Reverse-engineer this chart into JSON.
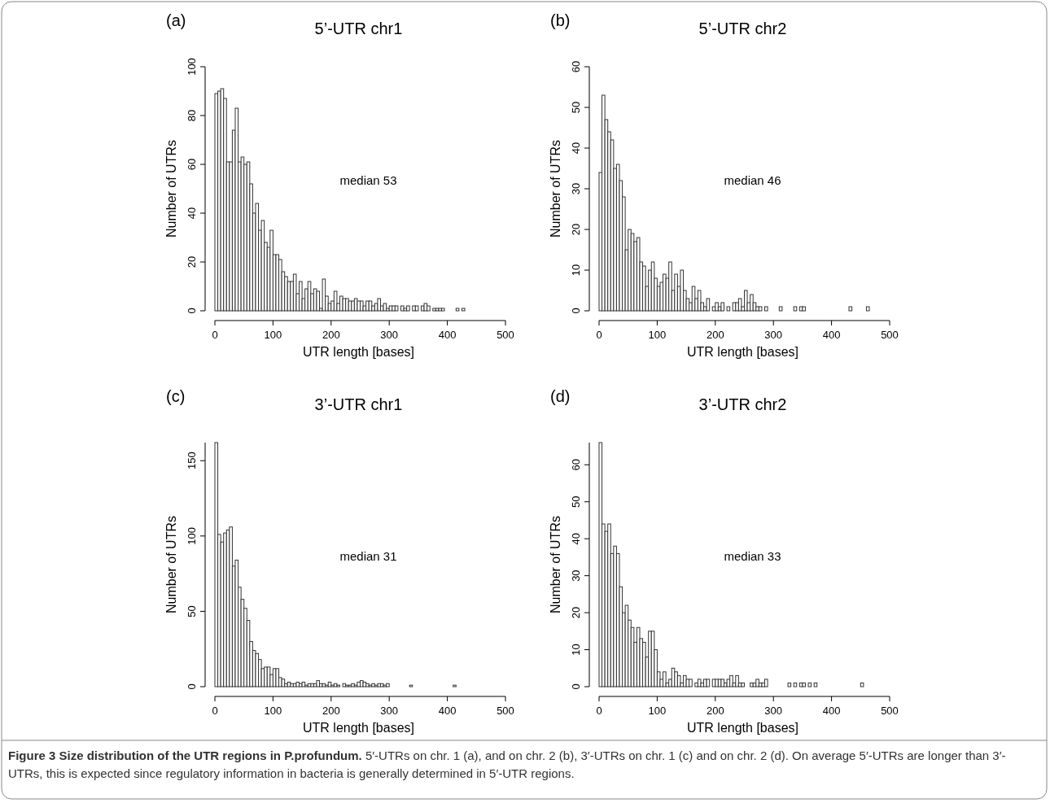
{
  "chart_data": [
    {
      "type": "histogram",
      "title": "5’-UTR chr1",
      "xlabel": "UTR length [bases]",
      "ylabel": "Number of UTRs",
      "color": "#333333",
      "xlim": [
        0,
        500
      ],
      "xticks": [
        0,
        100,
        200,
        300,
        400,
        500
      ],
      "ylim": [
        0,
        100
      ],
      "yticks": [
        0,
        20,
        40,
        60,
        80,
        100
      ],
      "annotations": [
        "(a)",
        "median 53"
      ],
      "bins": [
        0,
        5,
        10,
        15,
        20,
        25,
        30,
        35,
        40,
        45,
        50,
        55,
        60,
        65,
        70,
        75,
        80,
        85,
        90,
        95,
        100,
        105,
        110,
        115,
        120,
        125,
        130,
        135,
        140,
        145,
        150,
        155,
        160,
        165,
        170,
        175,
        180,
        185,
        190,
        195,
        200,
        205,
        210,
        215,
        220,
        225,
        230,
        235,
        240,
        245,
        250,
        255,
        260,
        265,
        270,
        275,
        280,
        285,
        290,
        295,
        300,
        305,
        310,
        315,
        320,
        325,
        330,
        335,
        340,
        345,
        350,
        355,
        360,
        365,
        370,
        375,
        380,
        385,
        390,
        395,
        400,
        405,
        410,
        415,
        420,
        425,
        430
      ],
      "values": [
        89,
        90,
        91,
        87,
        61,
        61,
        74,
        83,
        61,
        63,
        60,
        61,
        52,
        40,
        44,
        33,
        37,
        28,
        26,
        33,
        23,
        23,
        21,
        16,
        14,
        12,
        12,
        15,
        7,
        12,
        5,
        9,
        12,
        7,
        9,
        8,
        1,
        13,
        6,
        3,
        4,
        8,
        3,
        6,
        5,
        5,
        4,
        4,
        5,
        4,
        4,
        2,
        4,
        4,
        2,
        3,
        5,
        2,
        3,
        1,
        2,
        2,
        2,
        0,
        2,
        1,
        2,
        0,
        2,
        2,
        0,
        2,
        3,
        2,
        0,
        1,
        1,
        1,
        1,
        0,
        0,
        0,
        0,
        1,
        0,
        1
      ]
    },
    {
      "type": "histogram",
      "title": "5’-UTR chr2",
      "xlabel": "UTR length [bases]",
      "ylabel": "Number of UTRs",
      "color": "#333333",
      "xlim": [
        0,
        500
      ],
      "xticks": [
        0,
        100,
        200,
        300,
        400,
        500
      ],
      "ylim": [
        0,
        60
      ],
      "yticks": [
        0,
        10,
        20,
        30,
        40,
        50,
        60
      ],
      "annotations": [
        "(b)",
        "median 46"
      ],
      "bins": [
        0,
        5,
        10,
        15,
        20,
        25,
        30,
        35,
        40,
        45,
        50,
        55,
        60,
        65,
        70,
        75,
        80,
        85,
        90,
        95,
        100,
        105,
        110,
        115,
        120,
        125,
        130,
        135,
        140,
        145,
        150,
        155,
        160,
        165,
        170,
        175,
        180,
        185,
        190,
        195,
        200,
        205,
        210,
        215,
        220,
        225,
        230,
        235,
        240,
        245,
        250,
        255,
        260,
        265,
        270,
        275,
        280,
        285,
        290,
        295,
        300,
        305,
        310,
        315,
        320,
        325,
        330,
        335,
        340,
        345,
        350,
        355,
        360,
        365,
        370,
        375,
        380,
        385,
        390,
        395,
        400,
        405,
        410,
        415,
        420,
        425,
        430,
        435,
        440,
        445,
        450,
        455,
        460,
        465
      ],
      "values": [
        34,
        53,
        47,
        44,
        42,
        35,
        36,
        32,
        28,
        15,
        20,
        19,
        17,
        18,
        12,
        11,
        6,
        10,
        12,
        8,
        6,
        7,
        9,
        8,
        12,
        5,
        9,
        6,
        10,
        5,
        3,
        2,
        6,
        3,
        5,
        2,
        1,
        3,
        0,
        1,
        2,
        1,
        2,
        0,
        1,
        0,
        2,
        2,
        3,
        1,
        5,
        2,
        4,
        2,
        1,
        1,
        0,
        1,
        0,
        0,
        0,
        0,
        1,
        0,
        0,
        0,
        0,
        1,
        0,
        1,
        1,
        0,
        0,
        0,
        0,
        0,
        0,
        0,
        0,
        0,
        0,
        0,
        0,
        0,
        0,
        0,
        1,
        0,
        0,
        0,
        0,
        0,
        1
      ]
    },
    {
      "type": "histogram",
      "title": "3’-UTR chr1",
      "xlabel": "UTR length [bases]",
      "ylabel": "Number of UTRs",
      "color": "#333333",
      "xlim": [
        0,
        500
      ],
      "xticks": [
        0,
        100,
        200,
        300,
        400,
        500
      ],
      "ylim": [
        0,
        162
      ],
      "yticks": [
        0,
        50,
        100,
        150
      ],
      "annotations": [
        "(c)",
        "median 31"
      ],
      "bins": [
        0,
        5,
        10,
        15,
        20,
        25,
        30,
        35,
        40,
        45,
        50,
        55,
        60,
        65,
        70,
        75,
        80,
        85,
        90,
        95,
        100,
        105,
        110,
        115,
        120,
        125,
        130,
        135,
        140,
        145,
        150,
        155,
        160,
        165,
        170,
        175,
        180,
        185,
        190,
        195,
        200,
        205,
        210,
        215,
        220,
        225,
        230,
        235,
        240,
        245,
        250,
        255,
        260,
        265,
        270,
        275,
        280,
        285,
        290,
        295,
        300,
        305,
        310,
        315,
        320,
        325,
        330,
        335,
        340,
        345,
        350,
        355,
        360,
        365,
        370,
        375,
        380,
        385,
        390,
        395,
        400,
        405,
        410,
        415
      ],
      "values": [
        162,
        101,
        96,
        102,
        104,
        106,
        80,
        84,
        66,
        58,
        52,
        44,
        30,
        24,
        22,
        18,
        12,
        13,
        13,
        8,
        12,
        12,
        6,
        5,
        2,
        3,
        2,
        2,
        3,
        2,
        3,
        1,
        2,
        2,
        2,
        4,
        2,
        2,
        1,
        3,
        1,
        2,
        1,
        0,
        2,
        1,
        1,
        2,
        1,
        3,
        4,
        3,
        2,
        1,
        2,
        1,
        2,
        2,
        1,
        2,
        0,
        0,
        0,
        0,
        0,
        0,
        0,
        1,
        0,
        0,
        0,
        0,
        0,
        0,
        0,
        0,
        0,
        0,
        0,
        0,
        0,
        0,
        1
      ]
    },
    {
      "type": "histogram",
      "title": "3’-UTR chr2",
      "xlabel": "UTR length [bases]",
      "ylabel": "Number of UTRs",
      "color": "#333333",
      "xlim": [
        0,
        500
      ],
      "xticks": [
        0,
        100,
        200,
        300,
        400,
        500
      ],
      "ylim": [
        0,
        66
      ],
      "yticks": [
        0,
        10,
        20,
        30,
        40,
        50,
        60
      ],
      "annotations": [
        "(d)",
        "median 33",
        "Figure 3 Size distribution of the UTR regions in P.profundum.",
        "5′-UTRs on chr. 1 (a), and on chr. 2 (b), 3′-UTRs on chr. 1 (c) and on chr. 2 (d). On average 5′-UTRs are longer than 3′-UTRs, this is expected since regulatory information in bacteria is generally determined in 5′-UTR regions."
      ],
      "bins": [
        0,
        5,
        10,
        15,
        20,
        25,
        30,
        35,
        40,
        45,
        50,
        55,
        60,
        65,
        70,
        75,
        80,
        85,
        90,
        95,
        100,
        105,
        110,
        115,
        120,
        125,
        130,
        135,
        140,
        145,
        150,
        155,
        160,
        165,
        170,
        175,
        180,
        185,
        190,
        195,
        200,
        205,
        210,
        215,
        220,
        225,
        230,
        235,
        240,
        245,
        250,
        255,
        260,
        265,
        270,
        275,
        280,
        285,
        290,
        295,
        300,
        305,
        310,
        315,
        320,
        325,
        330,
        335,
        340,
        345,
        350,
        355,
        360,
        365,
        370,
        375,
        380,
        385,
        390,
        395,
        400,
        405,
        410,
        415,
        420,
        425,
        430,
        435,
        440,
        445,
        450,
        455
      ],
      "values": [
        66,
        44,
        42,
        44,
        36,
        38,
        36,
        27,
        20,
        22,
        18,
        16,
        12,
        16,
        13,
        12,
        8,
        15,
        15,
        10,
        4,
        2,
        4,
        1,
        2,
        5,
        4,
        3,
        1,
        3,
        2,
        2,
        0,
        1,
        2,
        1,
        2,
        2,
        0,
        2,
        2,
        2,
        2,
        1,
        2,
        3,
        1,
        3,
        1,
        1,
        0,
        0,
        1,
        1,
        2,
        1,
        1,
        2,
        0,
        0,
        0,
        0,
        0,
        0,
        0,
        1,
        0,
        1,
        0,
        1,
        1,
        0,
        1,
        0,
        1,
        0,
        0,
        0,
        0,
        0,
        0,
        0,
        0,
        0,
        0,
        0,
        0,
        0,
        0,
        0,
        1
      ]
    }
  ]
}
